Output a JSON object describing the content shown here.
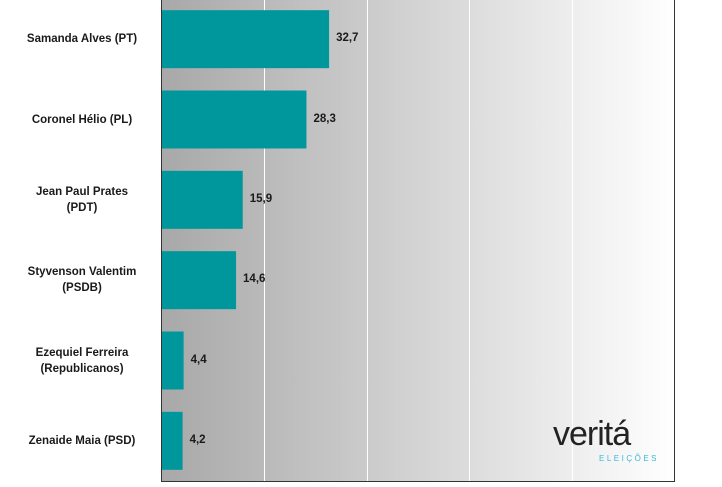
{
  "chart_data": {
    "type": "bar",
    "orientation": "horizontal",
    "categories": [
      "Samanda Alves (PT)",
      "Coronel Hélio (PL)",
      "Jean Paul Prates (PDT)",
      "Styvenson Valentim (PSDB)",
      "Ezequiel Ferreira (Republicanos)",
      "Zenaide Maia (PSD)"
    ],
    "category_lines": [
      [
        "Samanda Alves (PT)"
      ],
      [
        "Coronel Hélio (PL)"
      ],
      [
        "Jean Paul Prates",
        "(PDT)"
      ],
      [
        "Styvenson Valentim",
        "(PSDB)"
      ],
      [
        "Ezequiel Ferreira",
        "(Republicanos)"
      ],
      [
        "Zenaide Maia (PSD)"
      ]
    ],
    "values": [
      32.7,
      28.3,
      15.9,
      14.6,
      4.4,
      4.2
    ],
    "value_labels": [
      "32,7",
      "28,3",
      "15,9",
      "14,6",
      "4,4",
      "4,2"
    ],
    "xlim": [
      0,
      100
    ],
    "grid": true,
    "bar_color": "#00979c",
    "background_gradient": [
      "#a8a8a8",
      "#ffffff"
    ]
  },
  "logo": {
    "word": "veritá",
    "subtitle": "ELEIÇÕES"
  }
}
